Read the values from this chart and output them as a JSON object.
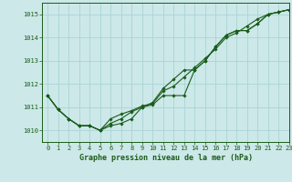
{
  "title": "Graphe pression niveau de la mer (hPa)",
  "background_color": "#cce8e8",
  "grid_color": "#aad4d4",
  "line_color": "#1a5c1a",
  "xlim": [
    -0.5,
    23
  ],
  "ylim": [
    1009.5,
    1015.5
  ],
  "yticks": [
    1010,
    1011,
    1012,
    1013,
    1014,
    1015
  ],
  "xticks": [
    0,
    1,
    2,
    3,
    4,
    5,
    6,
    7,
    8,
    9,
    10,
    11,
    12,
    13,
    14,
    15,
    16,
    17,
    18,
    19,
    20,
    21,
    22,
    23
  ],
  "series": [
    [
      1011.5,
      1010.9,
      1010.5,
      1010.2,
      1010.2,
      1010.0,
      1010.2,
      1010.3,
      1010.5,
      1011.0,
      1011.2,
      1011.8,
      1012.2,
      1012.6,
      1012.6,
      1013.0,
      1013.6,
      1014.1,
      1014.3,
      1014.3,
      1014.6,
      1015.0,
      1015.1,
      1015.2
    ],
    [
      1011.5,
      1010.9,
      1010.5,
      1010.2,
      1010.2,
      1010.0,
      1010.3,
      1010.5,
      1010.8,
      1011.0,
      1011.1,
      1011.5,
      1011.5,
      1011.5,
      1012.6,
      1013.0,
      1013.6,
      1014.1,
      1014.3,
      1014.3,
      1014.6,
      1015.0,
      1015.1,
      1015.2
    ],
    [
      1011.5,
      1010.9,
      1010.5,
      1010.2,
      1010.2,
      1010.0,
      1010.5,
      1010.7,
      1010.85,
      1011.05,
      1011.15,
      1011.7,
      1011.9,
      1012.3,
      1012.7,
      1013.1,
      1013.5,
      1014.0,
      1014.2,
      1014.5,
      1014.8,
      1015.0,
      1015.1,
      1015.2
    ]
  ],
  "title_fontsize": 6.0,
  "tick_fontsize": 5.0
}
